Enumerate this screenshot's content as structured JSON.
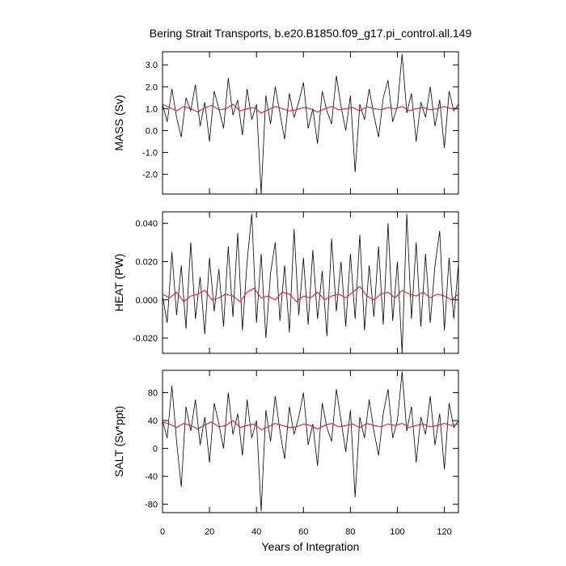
{
  "chart_data": {
    "type": "line",
    "title": "Bering Strait Transports, b.e20.B1850.f09_g17.pi_control.all.149",
    "xlabel": "Years of Integration",
    "xlim": [
      0,
      126
    ],
    "x_ticks": [
      "0",
      "20",
      "40",
      "60",
      "80",
      "100",
      "120"
    ],
    "x_tick_values": [
      0,
      20,
      40,
      60,
      80,
      100,
      120
    ],
    "raw_color": "#000000",
    "smooth_color": "#e0202a",
    "panels": [
      {
        "ylabel": "MASS (Sv)",
        "ylim": [
          -2.9,
          3.6
        ],
        "y_ticks": [
          "3.0",
          "2.0",
          "1.0",
          "0.0",
          "-1.0",
          "-2.0"
        ],
        "y_tick_values": [
          3.0,
          2.0,
          1.0,
          0.0,
          -1.0,
          -2.0
        ],
        "series": [
          {
            "style": "raw monthly",
            "x": [
              0,
              2,
              4,
              6,
              8,
              10,
              12,
              14,
              16,
              18,
              20,
              22,
              24,
              26,
              28,
              30,
              32,
              34,
              36,
              38,
              40,
              42,
              44,
              46,
              48,
              50,
              52,
              54,
              56,
              58,
              60,
              62,
              64,
              66,
              68,
              70,
              72,
              74,
              76,
              78,
              80,
              82,
              84,
              86,
              88,
              90,
              92,
              94,
              96,
              98,
              100,
              102,
              104,
              106,
              108,
              110,
              112,
              114,
              116,
              118,
              120,
              122,
              124,
              126
            ],
            "values": [
              1.2,
              0.4,
              1.9,
              0.6,
              -0.3,
              1.5,
              0.9,
              2.1,
              0.2,
              1.3,
              -0.5,
              1.8,
              1.0,
              0.1,
              2.4,
              0.7,
              1.4,
              -0.2,
              1.9,
              0.5,
              1.2,
              -2.9,
              1.6,
              0.3,
              2.0,
              0.8,
              -0.4,
              1.7,
              0.6,
              1.3,
              2.2,
              0.1,
              1.0,
              -0.6,
              1.8,
              0.9,
              0.3,
              2.5,
              1.1,
              0.0,
              1.6,
              -1.9,
              1.2,
              0.5,
              1.9,
              0.7,
              -0.3,
              1.5,
              2.3,
              0.4,
              1.1,
              3.5,
              0.8,
              1.7,
              -0.5,
              1.3,
              0.6,
              2.0,
              0.2,
              1.4,
              -0.8,
              1.8,
              0.9,
              1.2
            ]
          },
          {
            "style": "smoothed",
            "x": [
              0,
              3,
              6,
              9,
              12,
              15,
              18,
              21,
              24,
              27,
              30,
              33,
              36,
              39,
              42,
              45,
              48,
              51,
              54,
              57,
              60,
              63,
              66,
              69,
              72,
              75,
              78,
              81,
              84,
              87,
              90,
              93,
              96,
              99,
              102,
              105,
              108,
              111,
              114,
              117,
              120,
              123,
              126
            ],
            "values": [
              1.2,
              1.05,
              0.9,
              1.1,
              1.0,
              0.85,
              1.05,
              1.15,
              0.95,
              1.0,
              1.2,
              0.9,
              1.0,
              1.05,
              0.8,
              0.95,
              1.1,
              1.0,
              0.9,
              0.95,
              1.05,
              1.0,
              0.85,
              1.0,
              1.1,
              0.95,
              1.0,
              1.05,
              0.9,
              1.1,
              1.0,
              0.95,
              1.05,
              1.0,
              1.1,
              0.9,
              1.0,
              1.05,
              0.95,
              1.0,
              1.1,
              1.0,
              1.05
            ]
          }
        ]
      },
      {
        "ylabel": "HEAT (PW)",
        "ylim": [
          -0.028,
          0.046
        ],
        "y_ticks": [
          "0.040",
          "0.020",
          "0.000",
          "-0.020"
        ],
        "y_tick_values": [
          0.04,
          0.02,
          0.0,
          -0.02
        ],
        "series": [
          {
            "style": "raw monthly",
            "x": [
              0,
              2,
              4,
              6,
              8,
              10,
              12,
              14,
              16,
              18,
              20,
              22,
              24,
              26,
              28,
              30,
              32,
              34,
              36,
              38,
              40,
              42,
              44,
              46,
              48,
              50,
              52,
              54,
              56,
              58,
              60,
              62,
              64,
              66,
              68,
              70,
              72,
              74,
              76,
              78,
              80,
              82,
              84,
              86,
              88,
              90,
              92,
              94,
              96,
              98,
              100,
              102,
              104,
              106,
              108,
              110,
              112,
              114,
              116,
              118,
              120,
              122,
              124,
              126
            ],
            "values": [
              0.002,
              -0.012,
              0.025,
              -0.008,
              0.018,
              -0.015,
              0.03,
              -0.01,
              0.012,
              -0.018,
              0.022,
              -0.006,
              0.016,
              -0.014,
              0.028,
              -0.009,
              0.035,
              -0.016,
              0.02,
              0.045,
              -0.012,
              0.024,
              -0.02,
              0.014,
              0.03,
              -0.011,
              0.018,
              -0.017,
              0.037,
              -0.008,
              0.022,
              -0.013,
              0.026,
              -0.01,
              0.015,
              -0.019,
              0.032,
              -0.006,
              0.02,
              -0.014,
              0.024,
              -0.01,
              0.034,
              -0.016,
              0.018,
              -0.009,
              0.028,
              -0.013,
              0.04,
              -0.011,
              0.02,
              -0.028,
              0.045,
              -0.01,
              0.03,
              -0.014,
              0.024,
              -0.012,
              0.018,
              0.036,
              -0.016,
              0.022,
              -0.01,
              0.019
            ]
          },
          {
            "style": "smoothed",
            "x": [
              0,
              3,
              6,
              9,
              12,
              15,
              18,
              21,
              24,
              27,
              30,
              33,
              36,
              39,
              42,
              45,
              48,
              51,
              54,
              57,
              60,
              63,
              66,
              69,
              72,
              75,
              78,
              81,
              84,
              87,
              90,
              93,
              96,
              99,
              102,
              105,
              108,
              111,
              114,
              117,
              120,
              123,
              126
            ],
            "values": [
              0.003,
              0.001,
              0.004,
              -0.001,
              0.002,
              0.003,
              0.005,
              0.0,
              0.001,
              0.003,
              0.002,
              -0.001,
              0.004,
              0.006,
              0.001,
              0.002,
              0.0,
              0.004,
              0.003,
              -0.001,
              0.002,
              0.001,
              0.004,
              0.0,
              0.002,
              0.003,
              0.001,
              0.004,
              0.007,
              0.002,
              0.0,
              0.003,
              0.004,
              0.001,
              0.005,
              0.003,
              0.002,
              0.004,
              0.001,
              0.003,
              0.002,
              0.0,
              0.003
            ]
          }
        ]
      },
      {
        "ylabel": "SALT (Sv*ppt)",
        "ylim": [
          -92,
          112
        ],
        "y_ticks": [
          "80",
          "40",
          "0",
          "-40",
          "-80"
        ],
        "y_tick_values": [
          80,
          40,
          0,
          -40,
          -80
        ],
        "series": [
          {
            "style": "raw monthly",
            "x": [
              0,
              2,
              4,
              6,
              8,
              10,
              12,
              14,
              16,
              18,
              20,
              22,
              24,
              26,
              28,
              30,
              32,
              34,
              36,
              38,
              40,
              42,
              44,
              46,
              48,
              50,
              52,
              54,
              56,
              58,
              60,
              62,
              64,
              66,
              68,
              70,
              72,
              74,
              76,
              78,
              80,
              82,
              84,
              86,
              88,
              90,
              92,
              94,
              96,
              98,
              100,
              102,
              104,
              106,
              108,
              110,
              112,
              114,
              116,
              118,
              120,
              122,
              124,
              126
            ],
            "values": [
              40,
              15,
              90,
              10,
              -55,
              60,
              25,
              70,
              5,
              45,
              -20,
              65,
              35,
              0,
              80,
              20,
              50,
              -10,
              70,
              15,
              40,
              -90,
              55,
              10,
              75,
              25,
              -15,
              60,
              20,
              45,
              80,
              5,
              35,
              -25,
              65,
              30,
              10,
              85,
              40,
              -5,
              55,
              -70,
              45,
              15,
              70,
              25,
              -10,
              50,
              85,
              15,
              40,
              110,
              25,
              60,
              -20,
              45,
              20,
              75,
              5,
              50,
              -30,
              65,
              30,
              40
            ]
          },
          {
            "style": "smoothed",
            "x": [
              0,
              3,
              6,
              9,
              12,
              15,
              18,
              21,
              24,
              27,
              30,
              33,
              36,
              39,
              42,
              45,
              48,
              51,
              54,
              57,
              60,
              63,
              66,
              69,
              72,
              75,
              78,
              81,
              84,
              87,
              90,
              93,
              96,
              99,
              102,
              105,
              108,
              111,
              114,
              117,
              120,
              123,
              126
            ],
            "values": [
              38,
              35,
              30,
              36,
              33,
              28,
              34,
              38,
              31,
              33,
              40,
              30,
              33,
              35,
              27,
              31,
              36,
              33,
              30,
              31,
              35,
              33,
              28,
              33,
              36,
              31,
              33,
              35,
              30,
              36,
              33,
              31,
              35,
              33,
              36,
              30,
              33,
              35,
              31,
              33,
              36,
              33,
              35
            ]
          }
        ]
      }
    ]
  }
}
